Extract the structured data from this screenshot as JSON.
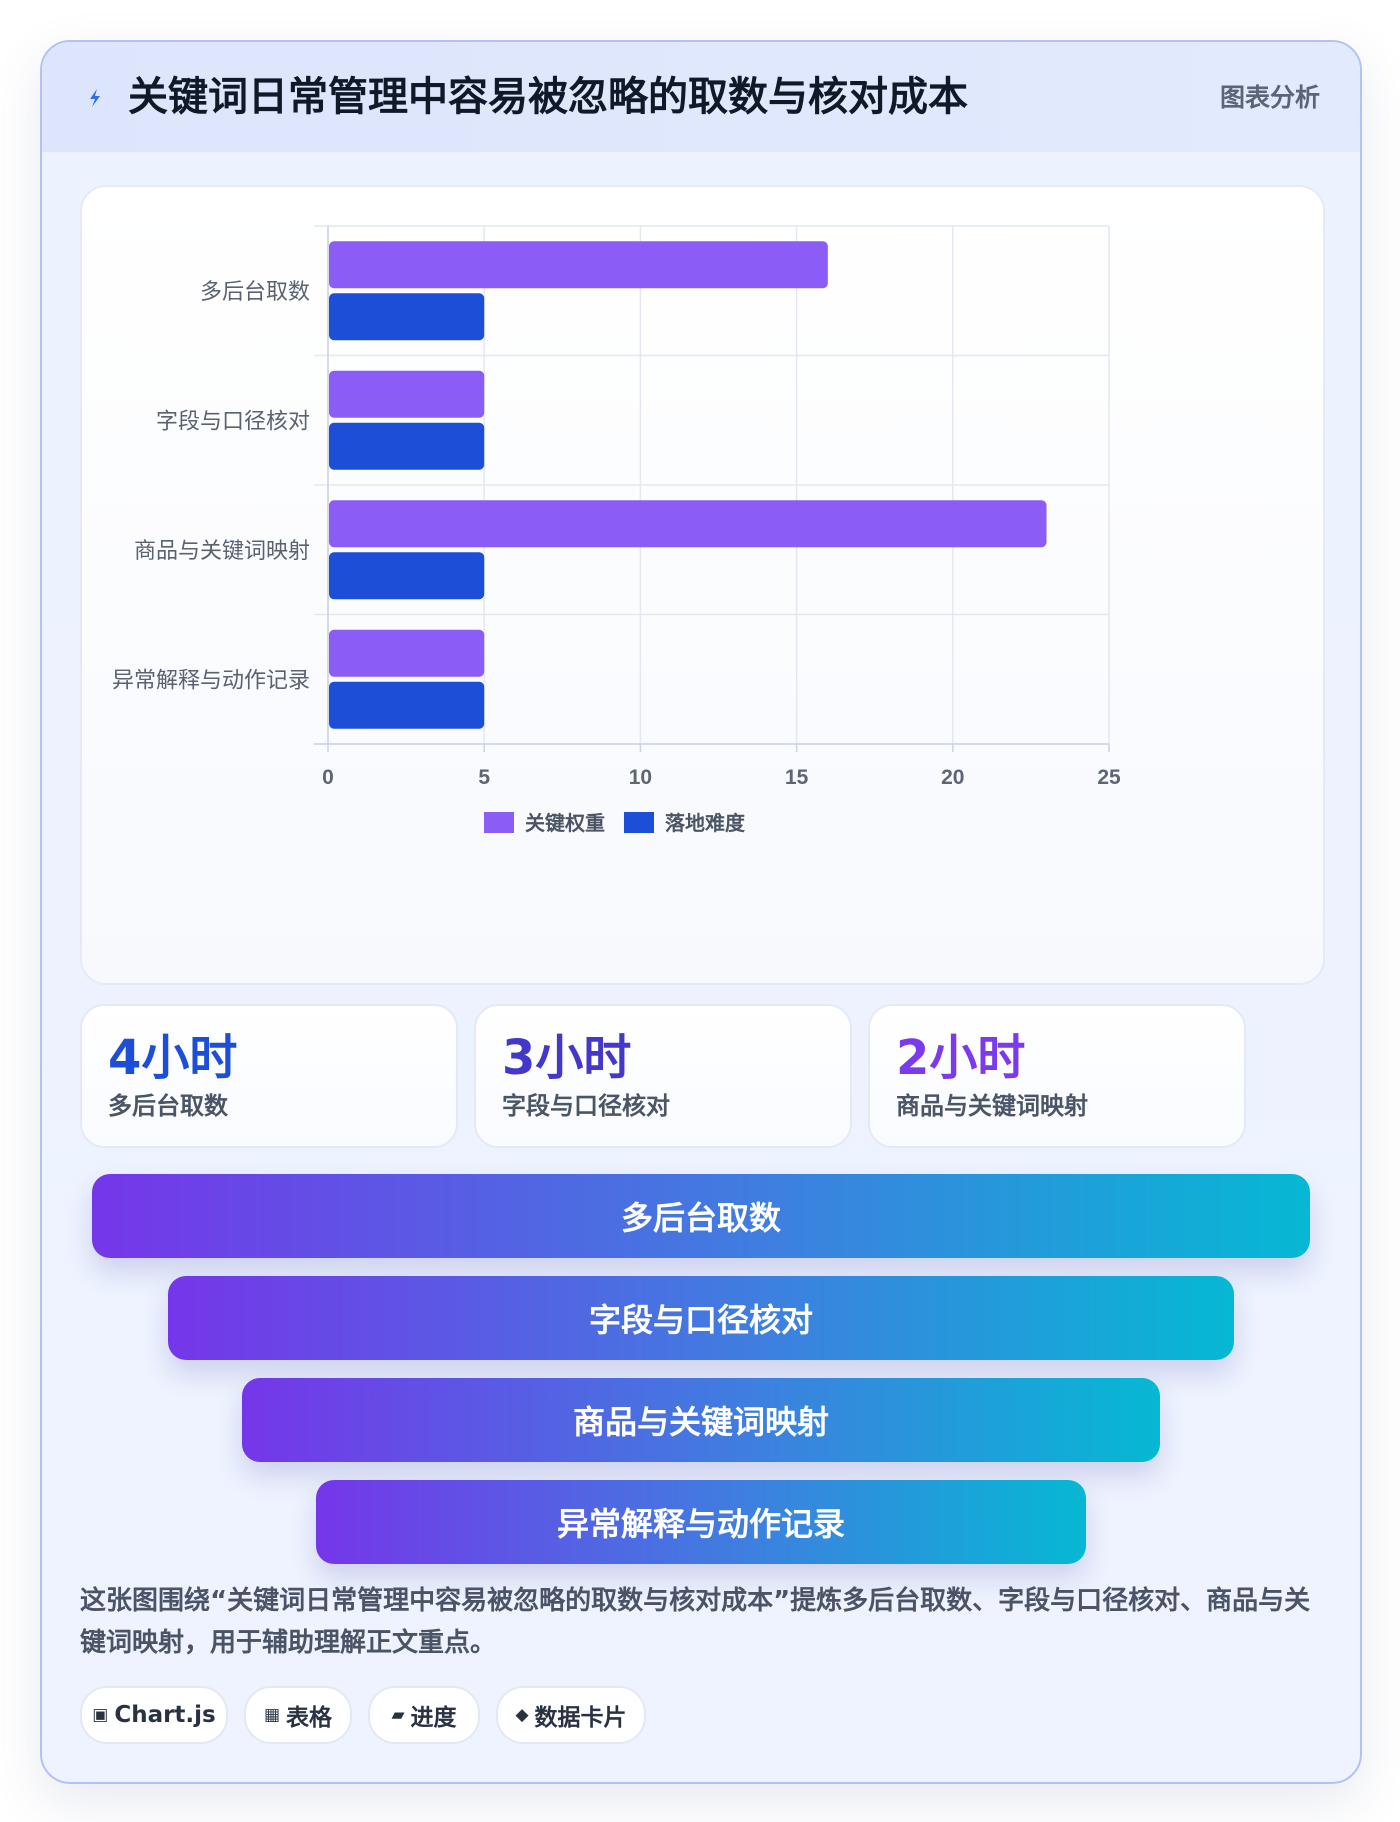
{
  "header": {
    "title": "关键词日常管理中容易被忽略的取数与核对成本",
    "tag": "图表分析",
    "icon": "lightning-icon"
  },
  "colors": {
    "weight": "#8b5cf6",
    "difficulty": "#1d4ed8",
    "stat_values": [
      "#1d4ed8",
      "#4338ca",
      "#7c3aed"
    ],
    "funnel_start": "#7536e9",
    "funnel_end": "#06b8d4"
  },
  "chart_data": {
    "type": "bar",
    "orientation": "horizontal",
    "categories": [
      "多后台取数",
      "字段与口径核对",
      "商品与关键词映射",
      "异常解释与动作记录"
    ],
    "series": [
      {
        "name": "关键权重",
        "values": [
          16,
          5,
          23,
          5
        ]
      },
      {
        "name": "落地难度",
        "values": [
          5,
          5,
          5,
          5
        ]
      }
    ],
    "xlim": [
      0,
      25
    ],
    "xticks": [
      "0",
      "5",
      "10",
      "15",
      "20",
      "25"
    ],
    "grid": true,
    "legend": "bottom"
  },
  "stats": [
    {
      "value": "4小时",
      "label": "多后台取数"
    },
    {
      "value": "3小时",
      "label": "字段与口径核对"
    },
    {
      "value": "2小时",
      "label": "商品与关键词映射"
    }
  ],
  "funnel": [
    {
      "label": "多后台取数"
    },
    {
      "label": "字段与口径核对"
    },
    {
      "label": "商品与关键词映射"
    },
    {
      "label": "异常解释与动作记录"
    }
  ],
  "description": "这张图围绕“关键词日常管理中容易被忽略的取数与核对成本”提炼多后台取数、字段与口径核对、商品与关键词映射，用于辅助理解正文重点。",
  "chips": [
    {
      "icon": "▣",
      "icon_name": "chart-icon",
      "label": "Chart.js"
    },
    {
      "icon": "▦",
      "icon_name": "table-icon",
      "label": "表格"
    },
    {
      "icon": "▰",
      "icon_name": "progress-icon",
      "label": "进度"
    },
    {
      "icon": "◆",
      "icon_name": "data-card-icon",
      "label": "数据卡片"
    }
  ]
}
